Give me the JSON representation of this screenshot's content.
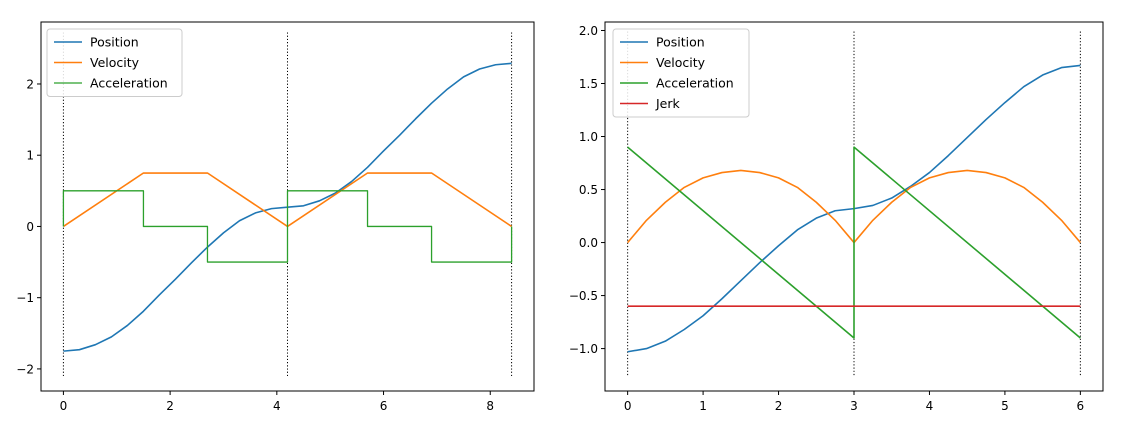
{
  "chart_data": [
    {
      "type": "line",
      "xlim": [
        -0.42,
        8.82
      ],
      "ylim": [
        -2.31,
        2.87
      ],
      "xticks": [
        0,
        2,
        4,
        6,
        8
      ],
      "xtick_labels": [
        "0",
        "2",
        "4",
        "6",
        "8"
      ],
      "yticks": [
        -2,
        -1,
        0,
        1,
        2
      ],
      "ytick_labels": [
        "−2",
        "−1",
        "0",
        "1",
        "2"
      ],
      "grid": false,
      "legend": "top-left",
      "vlines": {
        "x": [
          0,
          4.2,
          8.4
        ],
        "ymin": -2.1,
        "ymax": 2.75,
        "style": "dotted",
        "color": "#000000"
      },
      "series": [
        {
          "name": "Position",
          "color": "#1f77b4",
          "kind": "line",
          "x": [
            0,
            0.3,
            0.6,
            0.9,
            1.2,
            1.5,
            1.8,
            2.1,
            2.4,
            2.7,
            3.0,
            3.3,
            3.6,
            3.9,
            4.2,
            4.5,
            4.8,
            5.1,
            5.4,
            5.7,
            6.0,
            6.3,
            6.6,
            6.9,
            7.2,
            7.5,
            7.8,
            8.1,
            8.4
          ],
          "y": [
            -1.75,
            -1.73,
            -1.66,
            -1.55,
            -1.39,
            -1.19,
            -0.96,
            -0.74,
            -0.51,
            -0.29,
            -0.09,
            0.08,
            0.19,
            0.25,
            0.27,
            0.29,
            0.36,
            0.47,
            0.63,
            0.83,
            1.06,
            1.28,
            1.51,
            1.73,
            1.93,
            2.1,
            2.21,
            2.27,
            2.29
          ]
        },
        {
          "name": "Velocity",
          "color": "#ff7f0e",
          "kind": "line",
          "x": [
            0,
            1.5,
            2.7,
            4.2,
            5.7,
            6.9,
            8.4
          ],
          "y": [
            0,
            0.75,
            0.75,
            0,
            0.75,
            0.75,
            0
          ]
        },
        {
          "name": "Acceleration",
          "color": "#2ca02c",
          "kind": "step",
          "x": [
            0,
            0,
            1.5,
            1.5,
            2.7,
            2.7,
            4.2,
            4.2,
            5.7,
            5.7,
            6.9,
            6.9,
            8.4,
            8.4
          ],
          "y": [
            0,
            0.5,
            0.5,
            0,
            0,
            -0.5,
            -0.5,
            0.5,
            0.5,
            0,
            0,
            -0.5,
            -0.5,
            0
          ]
        }
      ]
    },
    {
      "type": "line",
      "xlim": [
        -0.3,
        6.3
      ],
      "ylim": [
        -1.4,
        2.08
      ],
      "xticks": [
        0,
        1,
        2,
        3,
        4,
        5,
        6
      ],
      "xtick_labels": [
        "0",
        "1",
        "2",
        "3",
        "4",
        "5",
        "6"
      ],
      "yticks": [
        -1.0,
        -0.5,
        0.0,
        0.5,
        1.0,
        1.5,
        2.0
      ],
      "ytick_labels": [
        "−1.0",
        "−0.5",
        "0.0",
        "0.5",
        "1.0",
        "1.5",
        "2.0"
      ],
      "grid": false,
      "legend": "top-left",
      "vlines": {
        "x": [
          0,
          3,
          6
        ],
        "ymin": -1.25,
        "ymax": 2.0,
        "style": "dotted",
        "color": "#000000"
      },
      "series": [
        {
          "name": "Position",
          "color": "#1f77b4",
          "kind": "line",
          "x": [
            0,
            0.25,
            0.5,
            0.75,
            1.0,
            1.25,
            1.5,
            1.75,
            2.0,
            2.25,
            2.5,
            2.75,
            3.0,
            3.25,
            3.5,
            3.75,
            4.0,
            4.25,
            4.5,
            4.75,
            5.0,
            5.25,
            5.5,
            5.75,
            6.0
          ],
          "y": [
            -1.03,
            -1.0,
            -0.93,
            -0.82,
            -0.69,
            -0.53,
            -0.36,
            -0.19,
            -0.03,
            0.12,
            0.23,
            0.3,
            0.32,
            0.35,
            0.42,
            0.53,
            0.66,
            0.82,
            0.99,
            1.16,
            1.32,
            1.47,
            1.58,
            1.65,
            1.67
          ]
        },
        {
          "name": "Velocity",
          "color": "#ff7f0e",
          "kind": "line",
          "x": [
            0,
            0.25,
            0.5,
            0.75,
            1.0,
            1.25,
            1.5,
            1.75,
            2.0,
            2.25,
            2.5,
            2.75,
            3.0,
            3.25,
            3.5,
            3.75,
            4.0,
            4.25,
            4.5,
            4.75,
            5.0,
            5.25,
            5.5,
            5.75,
            6.0
          ],
          "y": [
            0,
            0.21,
            0.38,
            0.52,
            0.61,
            0.66,
            0.68,
            0.66,
            0.61,
            0.52,
            0.38,
            0.21,
            0,
            0.21,
            0.38,
            0.52,
            0.61,
            0.66,
            0.68,
            0.66,
            0.61,
            0.52,
            0.38,
            0.21,
            0
          ]
        },
        {
          "name": "Acceleration",
          "color": "#2ca02c",
          "kind": "line",
          "x": [
            0,
            3,
            3,
            6
          ],
          "y": [
            0.9,
            -0.9,
            0.9,
            -0.9
          ]
        },
        {
          "name": "Jerk",
          "color": "#d62728",
          "kind": "line",
          "x": [
            0,
            6
          ],
          "y": [
            -0.6,
            -0.6
          ]
        }
      ]
    }
  ]
}
